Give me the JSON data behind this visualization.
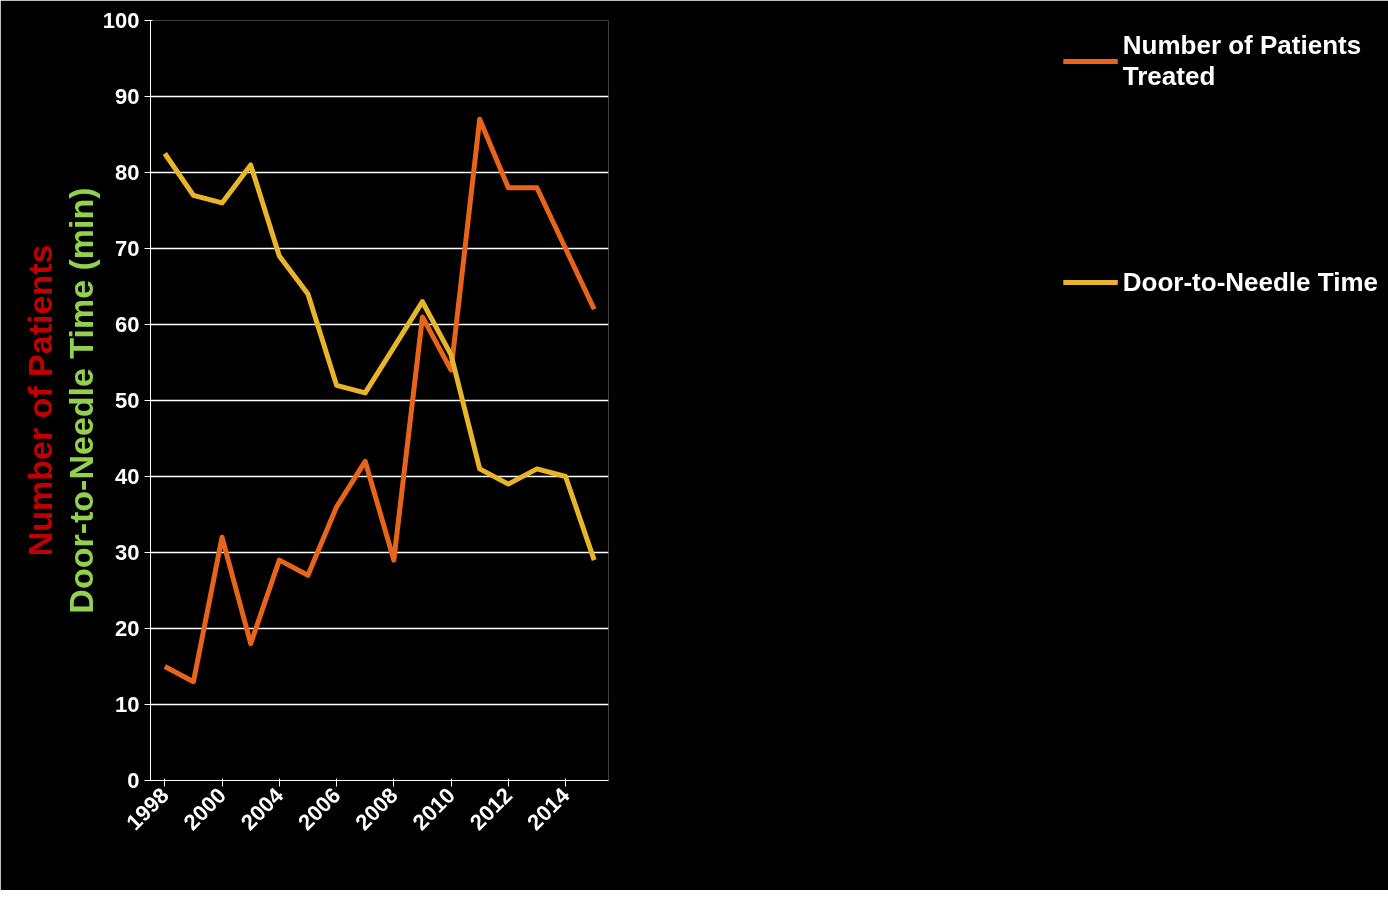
{
  "chart_data": {
    "type": "line",
    "ylabel": "Number of Patients",
    "y2label": "Door-to-Needle Time (min)",
    "categories": [
      "1998",
      null,
      "2000",
      null,
      "2004",
      null,
      "2006",
      null,
      "2008",
      null,
      "2010",
      null,
      "2012",
      null,
      "2014",
      null
    ],
    "series": [
      {
        "name": "Number of Patients Treated",
        "color": "#e8641b",
        "values": [
          15,
          13,
          32,
          18,
          29,
          27,
          36,
          42,
          29,
          61,
          54,
          87,
          78,
          78,
          70,
          62
        ]
      },
      {
        "name": "Door-to-Needle Time",
        "color": "#e8b42a",
        "values": [
          82.5,
          77,
          76,
          81,
          69,
          64,
          52,
          51,
          57,
          63,
          56,
          41,
          39,
          41,
          40,
          29
        ]
      }
    ],
    "ylim": [
      0,
      100
    ],
    "yticks": [
      0,
      10,
      20,
      30,
      40,
      50,
      60,
      70,
      80,
      90,
      100
    ],
    "grid": "y",
    "legend": "right",
    "marker": "none",
    "line_style": "solid"
  }
}
